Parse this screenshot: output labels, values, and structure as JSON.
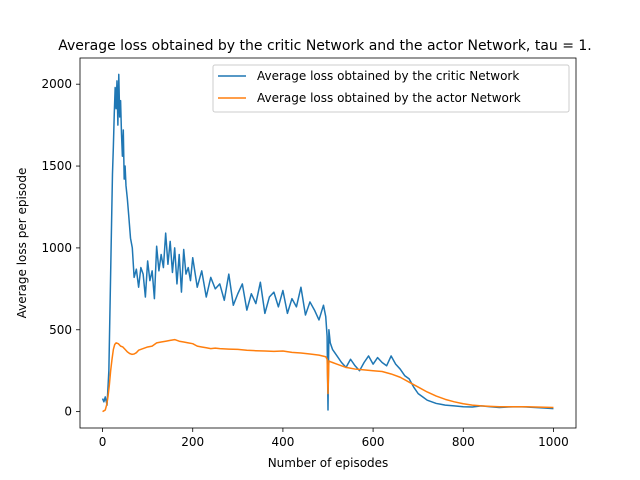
{
  "chart_data": {
    "type": "line",
    "title": "Average loss obtained by the critic Network and the actor Network, tau = 1.",
    "xlabel": "Number of episodes",
    "ylabel": "Average loss per episode",
    "xlim": [
      -50,
      1050
    ],
    "ylim": [
      -100,
      2160
    ],
    "xticks": [
      0,
      200,
      400,
      600,
      800,
      1000
    ],
    "yticks": [
      0,
      500,
      1000,
      1500,
      2000
    ],
    "grid": false,
    "legend_position": "top-right",
    "series": [
      {
        "name": "Average loss obtained by the critic Network",
        "color": "#1f77b4",
        "x": [
          0,
          3,
          6,
          10,
          14,
          17,
          20,
          22,
          24,
          26,
          28,
          30,
          32,
          34,
          36,
          38,
          40,
          42,
          44,
          46,
          48,
          50,
          52,
          55,
          58,
          62,
          66,
          70,
          75,
          80,
          85,
          90,
          95,
          100,
          105,
          110,
          115,
          120,
          125,
          130,
          135,
          140,
          145,
          150,
          155,
          160,
          165,
          170,
          175,
          180,
          185,
          190,
          195,
          200,
          210,
          220,
          230,
          240,
          250,
          260,
          270,
          280,
          290,
          300,
          310,
          320,
          330,
          340,
          350,
          360,
          370,
          380,
          390,
          400,
          410,
          420,
          430,
          440,
          450,
          460,
          470,
          480,
          490,
          495,
          498,
          500,
          502,
          505,
          510,
          520,
          530,
          540,
          550,
          560,
          570,
          580,
          590,
          600,
          610,
          620,
          630,
          640,
          650,
          660,
          670,
          680,
          690,
          700,
          710,
          720,
          730,
          740,
          750,
          760,
          780,
          800,
          820,
          840,
          860,
          880,
          900,
          920,
          940,
          960,
          980,
          1000
        ],
        "values": [
          80,
          60,
          90,
          40,
          250,
          700,
          1150,
          1450,
          1620,
          1820,
          1980,
          1850,
          2020,
          1750,
          2060,
          1800,
          1900,
          1700,
          1560,
          1720,
          1420,
          1500,
          1380,
          1300,
          1200,
          1060,
          1000,
          820,
          870,
          760,
          880,
          840,
          700,
          920,
          800,
          860,
          690,
          1010,
          860,
          960,
          880,
          1090,
          900,
          1040,
          850,
          1000,
          780,
          960,
          730,
          990,
          840,
          880,
          800,
          940,
          760,
          860,
          700,
          820,
          750,
          780,
          680,
          840,
          650,
          720,
          780,
          620,
          720,
          660,
          790,
          600,
          700,
          730,
          640,
          740,
          600,
          690,
          640,
          760,
          590,
          670,
          620,
          560,
          650,
          580,
          460,
          10,
          500,
          420,
          380,
          340,
          300,
          270,
          320,
          280,
          250,
          300,
          340,
          290,
          330,
          300,
          280,
          340,
          290,
          260,
          220,
          200,
          150,
          110,
          90,
          70,
          60,
          50,
          45,
          40,
          35,
          30,
          28,
          35,
          30,
          25,
          28,
          30,
          28,
          25,
          22,
          18
        ]
      },
      {
        "name": "Average loss obtained by the actor Network",
        "color": "#ff7f0e",
        "x": [
          0,
          3,
          6,
          9,
          12,
          15,
          18,
          21,
          24,
          27,
          30,
          35,
          40,
          45,
          50,
          55,
          60,
          65,
          70,
          75,
          80,
          90,
          100,
          110,
          120,
          130,
          140,
          150,
          160,
          170,
          180,
          190,
          200,
          210,
          220,
          230,
          240,
          250,
          260,
          280,
          300,
          320,
          340,
          360,
          380,
          400,
          420,
          440,
          460,
          480,
          495,
          498,
          500,
          502,
          505,
          510,
          520,
          540,
          560,
          580,
          600,
          620,
          640,
          660,
          680,
          700,
          720,
          740,
          760,
          780,
          800,
          820,
          840,
          860,
          880,
          900,
          920,
          940,
          960,
          980,
          1000
        ],
        "values": [
          0,
          5,
          10,
          40,
          90,
          160,
          250,
          320,
          380,
          410,
          420,
          415,
          400,
          395,
          380,
          365,
          355,
          350,
          352,
          360,
          375,
          385,
          395,
          400,
          420,
          425,
          430,
          435,
          440,
          430,
          425,
          420,
          415,
          400,
          395,
          390,
          385,
          388,
          385,
          382,
          380,
          375,
          372,
          370,
          368,
          370,
          362,
          358,
          352,
          345,
          335,
          320,
          110,
          310,
          305,
          300,
          290,
          270,
          260,
          255,
          250,
          245,
          230,
          210,
          180,
          150,
          120,
          95,
          75,
          60,
          48,
          40,
          35,
          32,
          30,
          30,
          30,
          30,
          28,
          27,
          25
        ]
      }
    ]
  }
}
